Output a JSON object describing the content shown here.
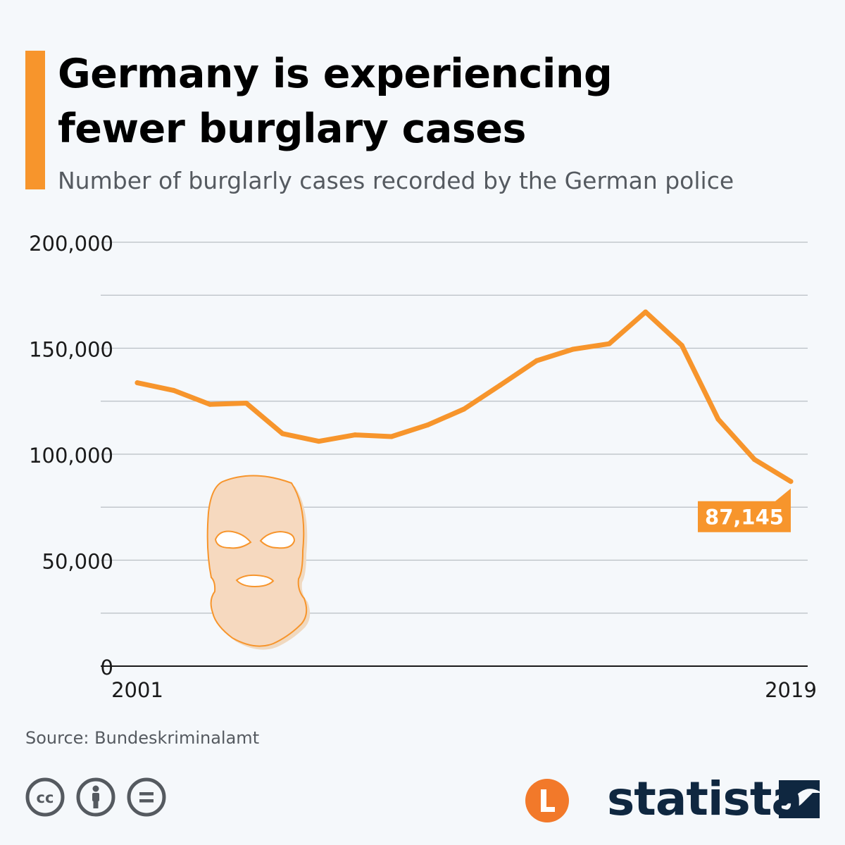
{
  "header": {
    "title_line1": "Germany is experiencing",
    "title_line2": "fewer burglary cases",
    "subtitle": "Number of burglarly cases recorded by the German police"
  },
  "chart_data": {
    "type": "line",
    "title": "Germany is experiencing fewer burglary cases",
    "subtitle": "Number of burglarly cases recorded by the German police",
    "x": [
      2001,
      2002,
      2003,
      2004,
      2005,
      2006,
      2007,
      2008,
      2009,
      2010,
      2011,
      2012,
      2013,
      2014,
      2015,
      2016,
      2017,
      2018,
      2019
    ],
    "x_tick_labels": [
      "2001",
      "2019"
    ],
    "series": [
      {
        "name": "Burglary cases",
        "values": [
          133700,
          130100,
          123500,
          124100,
          109700,
          106100,
          109100,
          108300,
          113800,
          121300,
          132600,
          144100,
          149500,
          152100,
          167100,
          151300,
          116500,
          97500,
          87145
        ]
      }
    ],
    "y_ticks": [
      0,
      50000,
      100000,
      150000,
      200000
    ],
    "y_tick_labels": [
      "0",
      "50,000",
      "100,000",
      "150,000",
      "200,000"
    ],
    "ylim": [
      0,
      200000
    ],
    "grid": true,
    "color": "#f7952c",
    "annotation": {
      "x": 2019,
      "value": 87145,
      "label": "87,145"
    }
  },
  "footer": {
    "source": "Source: Bundeskriminalamt",
    "brand": "statista",
    "brand_color": "#0f2740",
    "accent_color": "#f7952c"
  },
  "icons": [
    "balaclava-icon",
    "cc-icon",
    "by-icon",
    "nd-icon",
    "brand-l-icon",
    "statista-logo-mark"
  ]
}
